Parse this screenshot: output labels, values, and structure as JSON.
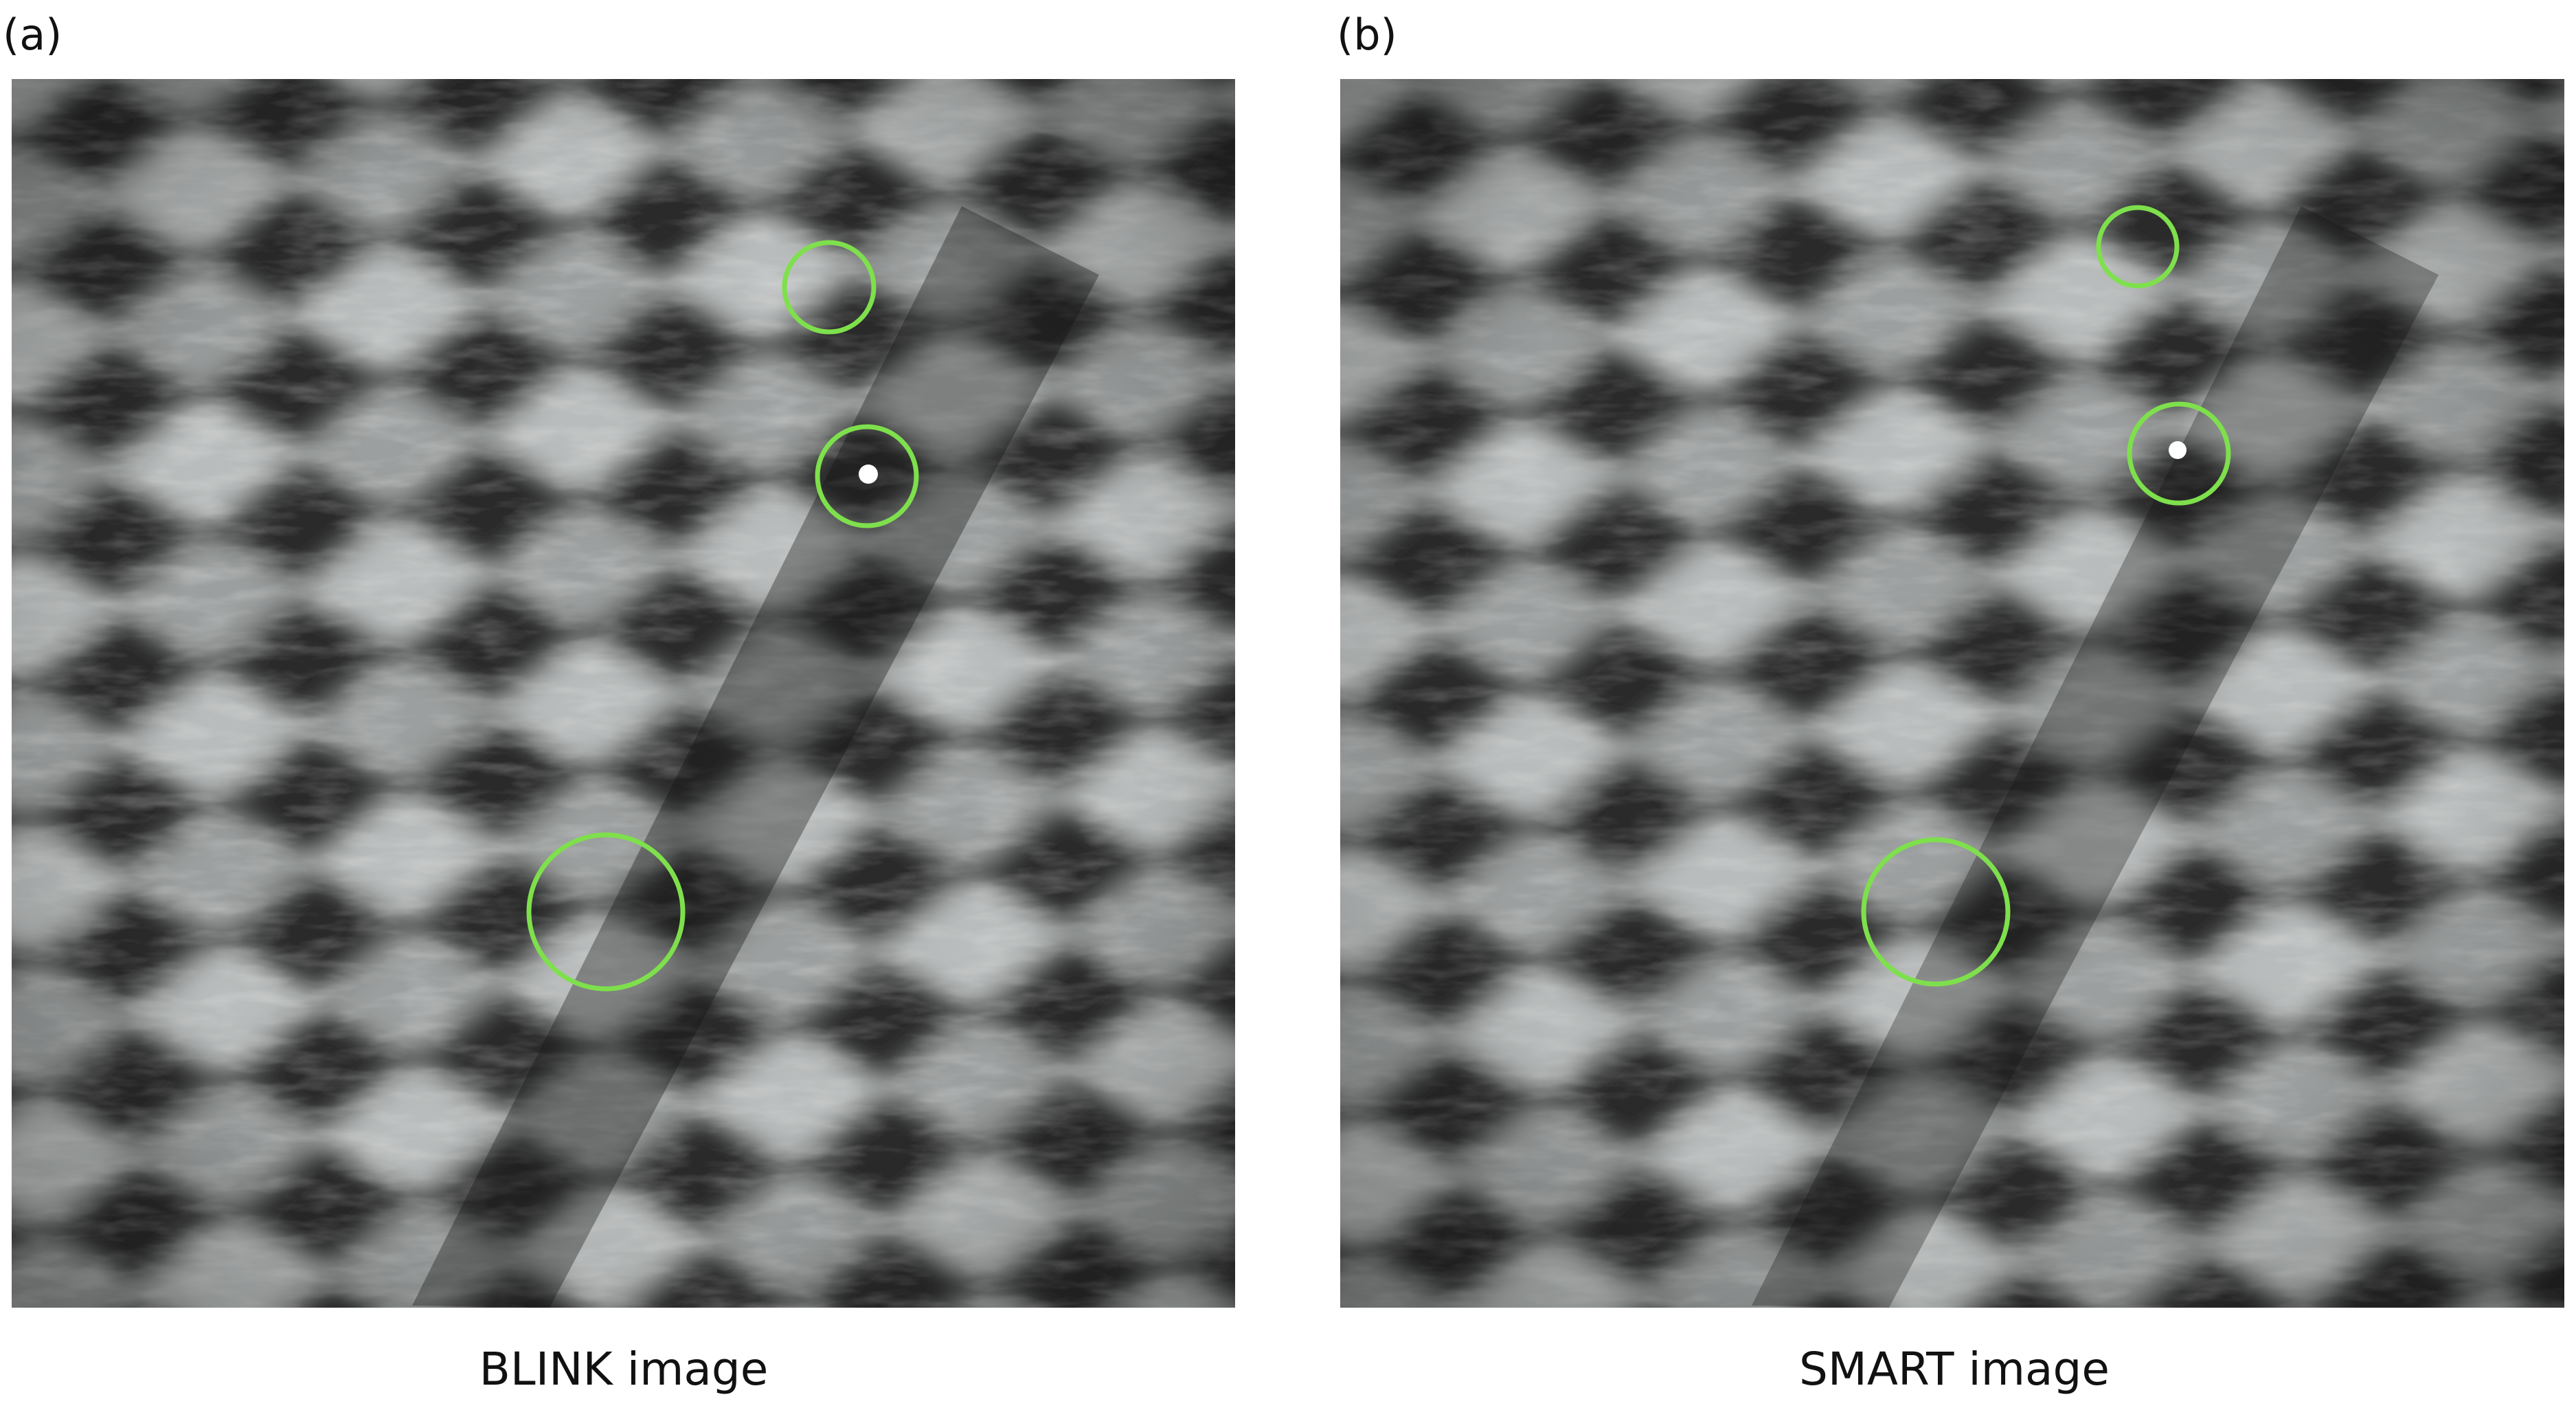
{
  "panels": [
    {
      "label": "(a)",
      "caption": "BLINK image"
    },
    {
      "label": "(b)",
      "caption": "SMART image"
    }
  ]
}
